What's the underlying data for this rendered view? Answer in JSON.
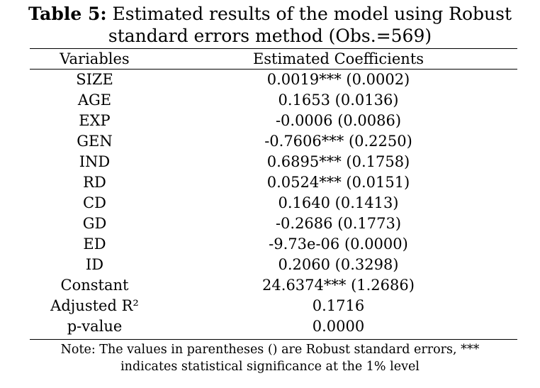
{
  "caption": {
    "label": "Table 5:",
    "title_line1": "Estimated results of the model using Robust",
    "title_line2": "standard errors method (Obs.=569)"
  },
  "table": {
    "headers": {
      "variables": "Variables",
      "coefficients": "Estimated Coefficients"
    },
    "rows": [
      {
        "variable": "SIZE",
        "coefficient": "0.0019*** (0.0002)"
      },
      {
        "variable": "AGE",
        "coefficient": "0.1653 (0.0136)"
      },
      {
        "variable": "EXP",
        "coefficient": "-0.0006 (0.0086)"
      },
      {
        "variable": "GEN",
        "coefficient": "-0.7606*** (0.2250)"
      },
      {
        "variable": "IND",
        "coefficient": "0.6895*** (0.1758)"
      },
      {
        "variable": "RD",
        "coefficient": "0.0524*** (0.0151)"
      },
      {
        "variable": "CD",
        "coefficient": "0.1640 (0.1413)"
      },
      {
        "variable": "GD",
        "coefficient": "-0.2686 (0.1773)"
      },
      {
        "variable": "ED",
        "coefficient": "-9.73e-06 (0.0000)"
      },
      {
        "variable": "ID",
        "coefficient": "0.2060 (0.3298)"
      },
      {
        "variable": "Constant",
        "coefficient": "24.6374*** (1.2686)"
      },
      {
        "variable": "Adjusted R²",
        "coefficient": "0.1716"
      },
      {
        "variable": "p-value",
        "coefficient": "0.0000"
      }
    ]
  },
  "note": {
    "line1": "Note: The values in parentheses () are Robust standard errors, ***",
    "line2": "indicates statistical significance at the 1% level"
  }
}
